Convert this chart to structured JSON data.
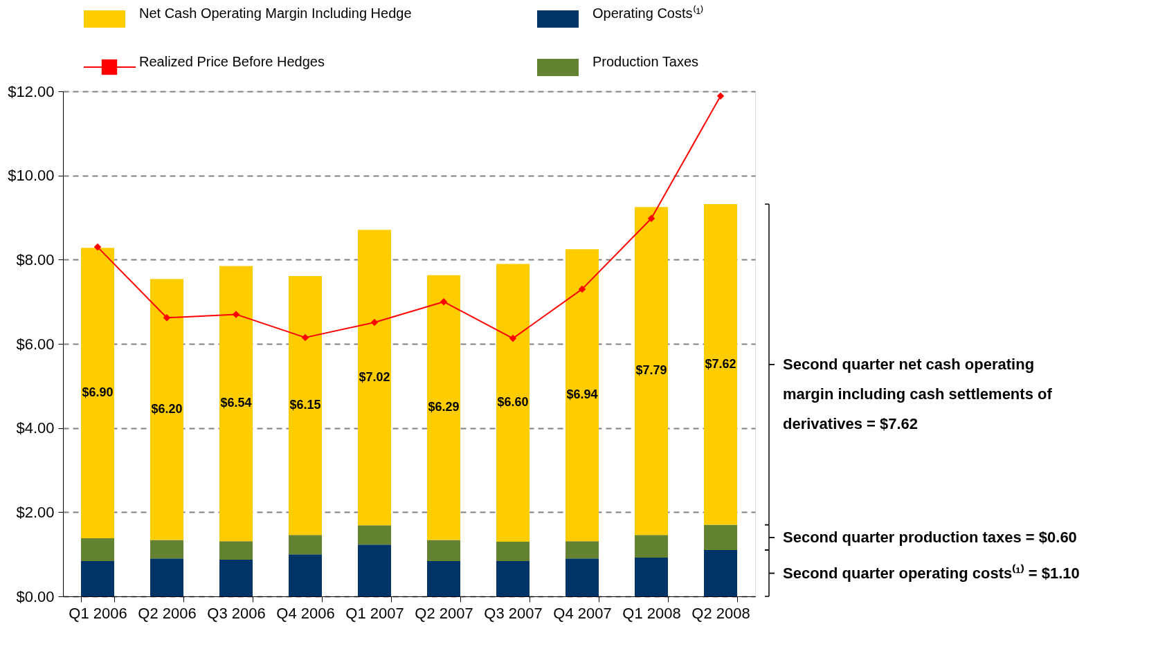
{
  "chart_data": {
    "type": "bar",
    "stacked": true,
    "categories": [
      "Q1 2006",
      "Q2 2006",
      "Q3 2006",
      "Q4 2006",
      "Q1 2007",
      "Q2 2007",
      "Q3 2007",
      "Q4 2007",
      "Q1 2008",
      "Q2 2008"
    ],
    "series": [
      {
        "name": "Operating Costs⁽¹⁾",
        "color": "#003366",
        "values": [
          0.84,
          0.9,
          0.87,
          1.0,
          1.23,
          0.84,
          0.84,
          0.9,
          0.92,
          1.1
        ]
      },
      {
        "name": "Production Taxes",
        "color": "#638232",
        "values": [
          0.54,
          0.44,
          0.44,
          0.46,
          0.46,
          0.5,
          0.46,
          0.41,
          0.54,
          0.6
        ]
      },
      {
        "name": "Net Cash Operating Margin Including Hedge",
        "color": "#ffcc00",
        "values": [
          6.9,
          6.2,
          6.54,
          6.15,
          7.02,
          6.29,
          6.6,
          6.94,
          7.79,
          7.62
        ],
        "value_labels": [
          "$6.90",
          "$6.20",
          "$6.54",
          "$6.15",
          "$7.02",
          "$6.29",
          "$6.60",
          "$6.94",
          "$7.79",
          "$7.62"
        ]
      },
      {
        "name": "Realized Price Before Hedges",
        "type": "line",
        "color": "#ff0000",
        "marker": "diamond",
        "values": [
          8.3,
          6.62,
          6.7,
          6.15,
          6.51,
          7.0,
          6.13,
          7.3,
          8.98,
          11.89
        ]
      }
    ],
    "ylim": [
      0,
      12
    ],
    "yticks": [
      {
        "value": 0,
        "label": "$0.00"
      },
      {
        "value": 2,
        "label": "$2.00"
      },
      {
        "value": 4,
        "label": "$4.00"
      },
      {
        "value": 6,
        "label": "$6.00"
      },
      {
        "value": 8,
        "label": "$8.00"
      },
      {
        "value": 10,
        "label": "$10.00"
      },
      {
        "value": 12,
        "label": "$12.00"
      }
    ],
    "grid": "y",
    "legend": "top",
    "annotations": [
      "Second quarter net cash operating margin including cash settlements of derivatives = $7.62",
      "Second quarter production taxes =  $0.60",
      "Second quarter operating costs⁽¹⁾ = $1.10"
    ]
  }
}
